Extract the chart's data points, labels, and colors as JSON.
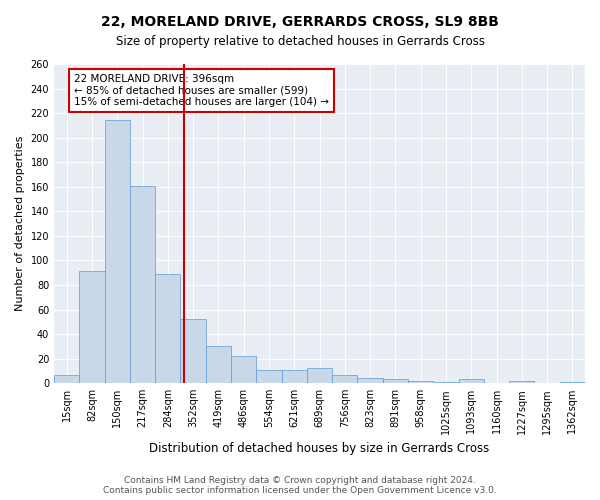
{
  "title": "22, MORELAND DRIVE, GERRARDS CROSS, SL9 8BB",
  "subtitle": "Size of property relative to detached houses in Gerrards Cross",
  "xlabel": "Distribution of detached houses by size in Gerrards Cross",
  "ylabel": "Number of detached properties",
  "footer_line1": "Contains HM Land Registry data © Crown copyright and database right 2024.",
  "footer_line2": "Contains public sector information licensed under the Open Government Licence v3.0.",
  "bin_labels": [
    "15sqm",
    "82sqm",
    "150sqm",
    "217sqm",
    "284sqm",
    "352sqm",
    "419sqm",
    "486sqm",
    "554sqm",
    "621sqm",
    "689sqm",
    "756sqm",
    "823sqm",
    "891sqm",
    "958sqm",
    "1025sqm",
    "1093sqm",
    "1160sqm",
    "1227sqm",
    "1295sqm",
    "1362sqm"
  ],
  "bar_heights": [
    7,
    91,
    214,
    161,
    89,
    52,
    30,
    22,
    11,
    11,
    12,
    7,
    4,
    3,
    2,
    1,
    3,
    0,
    2,
    0,
    1
  ],
  "bar_color": "#c8d8e8",
  "bar_edge_color": "#5b9bd5",
  "vline_x_index": 4.63,
  "vline_color": "#cc0000",
  "annotation_text": "22 MORELAND DRIVE: 396sqm\n← 85% of detached houses are smaller (599)\n15% of semi-detached houses are larger (104) →",
  "annotation_box_color": "white",
  "annotation_box_edge": "#cc0000",
  "annotation_fontsize": 7.5,
  "ylim": [
    0,
    260
  ],
  "yticks": [
    0,
    20,
    40,
    60,
    80,
    100,
    120,
    140,
    160,
    180,
    200,
    220,
    240,
    260
  ],
  "background_color": "#e8eef4",
  "grid_color": "white",
  "title_fontsize": 10,
  "subtitle_fontsize": 8.5,
  "xlabel_fontsize": 8.5,
  "ylabel_fontsize": 8,
  "tick_fontsize": 7,
  "footer_fontsize": 6.5
}
